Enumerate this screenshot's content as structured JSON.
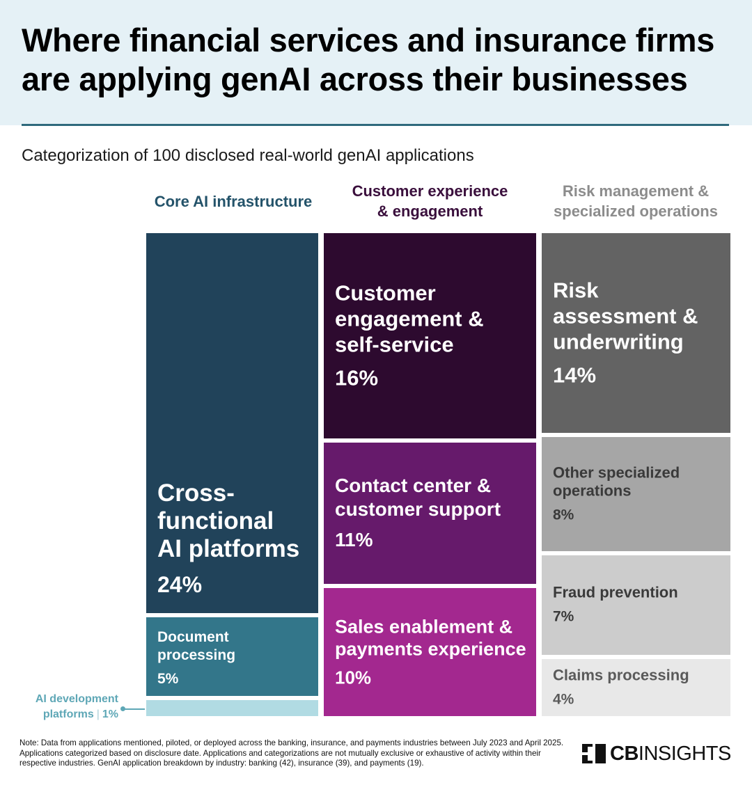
{
  "title": "Where financial services and insurance firms are applying genAI across their businesses",
  "subtitle": "Categorization of 100 disclosed real-world genAI applications",
  "colors": {
    "header_bg": "#e5f1f6",
    "core_heading": "#24536a",
    "cx_heading": "#3a0f3c",
    "risk_heading": "#8c8c8c",
    "cross_functional": "#21435a",
    "document_processing": "#33768a",
    "ai_development": "#b1dbe3",
    "customer_engagement": "#2d0a2f",
    "contact_center": "#661a6b",
    "sales_enablement": "#a3288f",
    "risk_assessment": "#636363",
    "other_specialized": "#a6a6a6",
    "fraud_prevention": "#cccccc",
    "claims_processing": "#e8e8e8"
  },
  "chart_data": {
    "type": "treemap",
    "unit": "%",
    "groups": [
      {
        "name": "Core AI infrastructure",
        "name_lines": [
          "Core AI infrastructure"
        ],
        "color": "#24536a",
        "items": [
          {
            "label": "Cross-functional AI platforms",
            "label_lines": [
              "Cross-",
              "functional",
              "AI platforms"
            ],
            "value": 24,
            "display": "24%",
            "color": "#21435a",
            "text_color": "#ffffff"
          },
          {
            "label": "Document processing",
            "label_lines": [
              "Document",
              "processing"
            ],
            "value": 5,
            "display": "5%",
            "color": "#33768a",
            "text_color": "#ffffff"
          },
          {
            "label": "AI development platforms",
            "label_lines": [
              "AI development",
              "platforms"
            ],
            "value": 1,
            "display": "1%",
            "color": "#b1dbe3",
            "text_color": "#5ea7b6"
          }
        ]
      },
      {
        "name": "Customer experience & engagement",
        "name_lines": [
          "Customer experience",
          "& engagement"
        ],
        "color": "#3a0f3c",
        "items": [
          {
            "label": "Customer engagement & self-service",
            "label_lines": [
              "Customer",
              "engagement &",
              "self-service"
            ],
            "value": 16,
            "display": "16%",
            "color": "#2d0a2f",
            "text_color": "#ffffff"
          },
          {
            "label": "Contact center & customer support",
            "label_lines": [
              "Contact center &",
              "customer support"
            ],
            "value": 11,
            "display": "11%",
            "color": "#661a6b",
            "text_color": "#ffffff"
          },
          {
            "label": "Sales enablement & payments experience",
            "label_lines": [
              "Sales enablement &",
              "payments experience"
            ],
            "value": 10,
            "display": "10%",
            "color": "#a3288f",
            "text_color": "#ffffff"
          }
        ]
      },
      {
        "name": "Risk management & specialized operations",
        "name_lines": [
          "Risk management &",
          "specialized operations"
        ],
        "color": "#8c8c8c",
        "items": [
          {
            "label": "Risk assessment & underwriting",
            "label_lines": [
              "Risk",
              "assessment &",
              "underwriting"
            ],
            "value": 14,
            "display": "14%",
            "color": "#636363",
            "text_color": "#ffffff"
          },
          {
            "label": "Other specialized operations",
            "label_lines": [
              "Other specialized",
              "operations"
            ],
            "value": 8,
            "display": "8%",
            "color": "#a6a6a6",
            "text_color": "#3a3a3a"
          },
          {
            "label": "Fraud prevention",
            "label_lines": [
              "Fraud prevention"
            ],
            "value": 7,
            "display": "7%",
            "color": "#cccccc",
            "text_color": "#3a3a3a"
          },
          {
            "label": "Claims processing",
            "label_lines": [
              "Claims processing"
            ],
            "value": 4,
            "display": "4%",
            "color": "#e8e8e8",
            "text_color": "#5a5a5a"
          }
        ]
      }
    ]
  },
  "callout": {
    "name": "AI development platforms",
    "name_lines": [
      "AI development",
      "platforms"
    ],
    "value_display": "1%",
    "separator": "|"
  },
  "note": "Note: Data from applications mentioned, piloted, or deployed across the banking, insurance, and payments industries between July 2023 and April 2025. Applications categorized based on disclosure date. Applications and categorizations are not mutually exclusive or exhaustive of activity within their respective industries. GenAI application breakdown by industry: banking (42), insurance (39), and payments (19).",
  "logo": {
    "bold": "CB",
    "light": "INSIGHTS",
    "icon": "cb-insights-logo-icon"
  }
}
